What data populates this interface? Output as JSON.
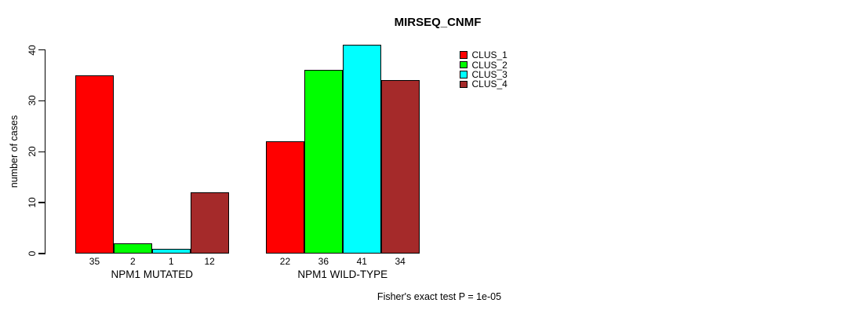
{
  "chart_data": {
    "type": "bar",
    "title": "MIRSEQ_CNMF",
    "ylabel": "number of cases",
    "ylim": [
      0,
      40
    ],
    "yticks": [
      0,
      10,
      20,
      30,
      40
    ],
    "grid": false,
    "legend_position": "top-right",
    "categories": [
      "NPM1 MUTATED",
      "NPM1 WILD-TYPE"
    ],
    "series": [
      {
        "name": "CLUS_1",
        "color": "#FF0000",
        "values": [
          35,
          22
        ]
      },
      {
        "name": "CLUS_2",
        "color": "#00FF00",
        "values": [
          2,
          36
        ]
      },
      {
        "name": "CLUS_3",
        "color": "#00FFFF",
        "values": [
          1,
          41
        ]
      },
      {
        "name": "CLUS_4",
        "color": "#A52A2A",
        "values": [
          12,
          34
        ]
      }
    ],
    "bar_value_labels_shown": true,
    "annotation": "Fisher's exact test P = 1e-05",
    "axis_color": "#000000",
    "background_color": "#FFFFFF"
  }
}
